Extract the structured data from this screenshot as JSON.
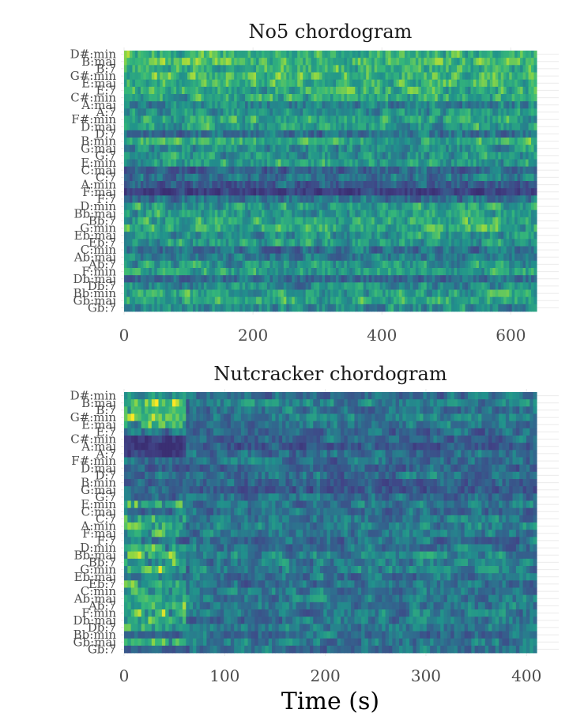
{
  "figure": {
    "xlabel": "Time (s)"
  },
  "chart_data": [
    {
      "type": "heatmap",
      "title": "No5 chordogram",
      "xlabel": "Time (s)",
      "ylabel": "",
      "xlim": [
        0,
        640
      ],
      "xticks": [
        0,
        200,
        400,
        600
      ],
      "grid": true,
      "legend": "none",
      "colormap": "viridis (partial: #3b2f73 to #fde725)",
      "chords": [
        "D#:min",
        "B:maj",
        "B:7",
        "G#:min",
        "E:maj",
        "E:7",
        "C#:min",
        "A:maj",
        "A:7",
        "F#:min",
        "D:maj",
        "D:7",
        "B:min",
        "G:maj",
        "G:7",
        "E:min",
        "C:maj",
        "C:7",
        "A:min",
        "F:maj",
        "F:7",
        "D:min",
        "Bb:maj",
        "Bb:7",
        "G:min",
        "Eb:maj",
        "Eb:7",
        "C:min",
        "Ab:maj",
        "Ab:7",
        "F:min",
        "Db:maj",
        "Db:7",
        "Bb:min",
        "Gb:maj",
        "Gb:7"
      ],
      "row_mean_distance": [
        0.3,
        0.28,
        0.32,
        0.27,
        0.31,
        0.33,
        0.38,
        0.52,
        0.45,
        0.36,
        0.4,
        0.62,
        0.34,
        0.46,
        0.44,
        0.4,
        0.68,
        0.6,
        0.7,
        0.86,
        0.6,
        0.42,
        0.4,
        0.36,
        0.34,
        0.44,
        0.4,
        0.6,
        0.55,
        0.42,
        0.38,
        0.62,
        0.48,
        0.4,
        0.36,
        0.48
      ]
    },
    {
      "type": "heatmap",
      "title": "Nutcracker chordogram",
      "xlabel": "Time (s)",
      "ylabel": "",
      "xlim": [
        0,
        410
      ],
      "xticks": [
        0,
        100,
        200,
        300,
        400
      ],
      "grid": true,
      "legend": "none",
      "colormap": "viridis (partial: #3b2f73 to #fde725)",
      "chords": [
        "D#:min",
        "B:maj",
        "B:7",
        "G#:min",
        "E:maj",
        "E:7",
        "C#:min",
        "A:maj",
        "A:7",
        "F#:min",
        "D:maj",
        "D:7",
        "B:min",
        "G:maj",
        "G:7",
        "E:min",
        "C:maj",
        "C:7",
        "A:min",
        "F:maj",
        "F:7",
        "D:min",
        "Bb:maj",
        "Bb:7",
        "G:min",
        "Eb:maj",
        "Eb:7",
        "C:min",
        "Ab:maj",
        "Ab:7",
        "F:min",
        "Db:maj",
        "Db:7",
        "Bb:min",
        "Gb:maj",
        "Gb:7"
      ],
      "row_mean_distance": [
        0.6,
        0.55,
        0.58,
        0.52,
        0.56,
        0.62,
        0.64,
        0.72,
        0.62,
        0.6,
        0.66,
        0.6,
        0.66,
        0.7,
        0.62,
        0.58,
        0.6,
        0.55,
        0.52,
        0.56,
        0.6,
        0.58,
        0.5,
        0.56,
        0.54,
        0.6,
        0.58,
        0.56,
        0.55,
        0.58,
        0.54,
        0.58,
        0.55,
        0.6,
        0.56,
        0.6
      ]
    }
  ]
}
